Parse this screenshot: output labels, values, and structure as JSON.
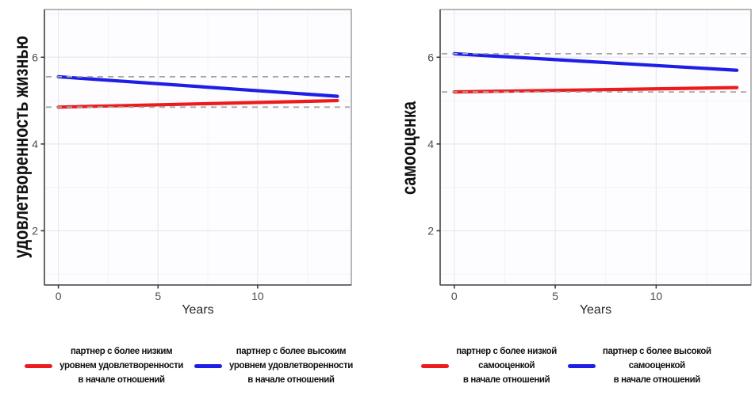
{
  "palette": {
    "red": "#ed1c1c",
    "blue": "#1e1ee6",
    "baseline_dash": "#a6a6a6",
    "panel_border": "#999999",
    "axis_line": "#4d4d4d",
    "tick_mark": "#333333",
    "grid_major": "#e9e8f0",
    "grid_minor": "#f4f3f8",
    "panel_bg": "#fdfcff",
    "tick_text": "#4d4d4d",
    "background": "#ffffff"
  },
  "chart_data": [
    {
      "type": "line",
      "xlabel": "Years",
      "ylabel": "удовлетворенность жизнью",
      "xlim": [
        -0.7,
        14.7
      ],
      "ylim": [
        0.75,
        7.1
      ],
      "xticks": [
        0,
        5,
        10
      ],
      "yticks": [
        2,
        4,
        6
      ],
      "x_minor": [
        2.5,
        7.5,
        12.5
      ],
      "y_minor": [
        1,
        3,
        5,
        7
      ],
      "x_range": [
        0,
        14
      ],
      "grid": true,
      "legend_position": "bottom",
      "series": [
        {
          "name": "партнер с более низким уровнем удовлетворенности в начале отношений",
          "color": "#ed1c1c",
          "x": [
            0,
            14
          ],
          "y": [
            4.85,
            5.0
          ],
          "baseline": 4.85
        },
        {
          "name": "партнер с более высоким уровнем удовлетворенности в начале отношений",
          "color": "#1e1ee6",
          "x": [
            0,
            14
          ],
          "y": [
            5.55,
            5.1
          ],
          "baseline": 5.55
        }
      ],
      "legend": [
        {
          "color": "#ed1c1c",
          "lines": [
            "партнер с более низким",
            "уровнем удовлетворенности",
            "в начале отношений"
          ]
        },
        {
          "color": "#1e1ee6",
          "lines": [
            "партнер с более высоким",
            "уровнем удовлетворенности",
            "в начале отношений"
          ]
        }
      ]
    },
    {
      "type": "line",
      "xlabel": "Years",
      "ylabel": "самооценка",
      "xlim": [
        -0.7,
        14.7
      ],
      "ylim": [
        0.75,
        7.1
      ],
      "xticks": [
        0,
        5,
        10
      ],
      "yticks": [
        2,
        4,
        6
      ],
      "x_minor": [
        2.5,
        7.5,
        12.5
      ],
      "y_minor": [
        1,
        3,
        5,
        7
      ],
      "x_range": [
        0,
        14
      ],
      "grid": true,
      "legend_position": "bottom",
      "series": [
        {
          "name": "партнер с более низкой самооценкой в начале отношений",
          "color": "#ed1c1c",
          "x": [
            0,
            14
          ],
          "y": [
            5.2,
            5.3
          ],
          "baseline": 5.2
        },
        {
          "name": "партнер с более высокой самооценкой в начале отношений",
          "color": "#1e1ee6",
          "x": [
            0,
            14
          ],
          "y": [
            6.08,
            5.7
          ],
          "baseline": 6.08
        }
      ],
      "legend": [
        {
          "color": "#ed1c1c",
          "lines": [
            "партнер с более низкой",
            "самооценкой",
            "в начале отношений"
          ]
        },
        {
          "color": "#1e1ee6",
          "lines": [
            "партнер с более высокой",
            "самооценкой",
            "в начале отношений"
          ]
        }
      ]
    }
  ]
}
